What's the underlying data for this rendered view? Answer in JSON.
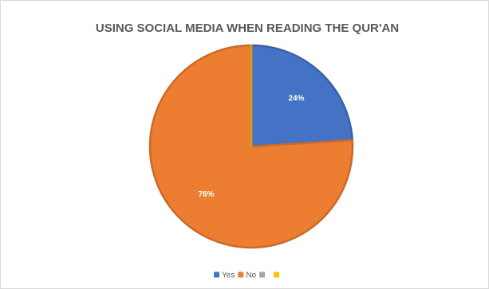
{
  "chart_data": {
    "type": "pie",
    "title": "USING SOCIAL MEDIA WHEN READING THE QUR'AN",
    "categories": [
      "Yes",
      "No",
      null,
      null
    ],
    "values": [
      24,
      76,
      0,
      0
    ],
    "value_labels": [
      "24%",
      "76%",
      null,
      null
    ],
    "colors": [
      "#4472c4",
      "#ed7d31",
      "#a5a5a5",
      "#ffc000"
    ],
    "legend": "bottom"
  }
}
